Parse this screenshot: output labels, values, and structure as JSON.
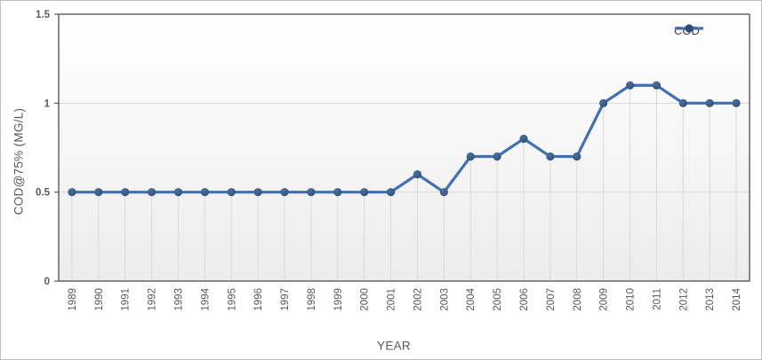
{
  "chart_data": {
    "type": "line",
    "title": "",
    "xlabel": "YEAR",
    "ylabel": "COD@75% (MG/L)",
    "categories": [
      "1989",
      "1990",
      "1991",
      "1992",
      "1993",
      "1994",
      "1995",
      "1996",
      "1997",
      "1998",
      "1999",
      "2000",
      "2001",
      "2002",
      "2003",
      "2004",
      "2005",
      "2006",
      "2007",
      "2008",
      "2009",
      "2010",
      "2011",
      "2012",
      "2013",
      "2014"
    ],
    "series": [
      {
        "name": "COD",
        "values": [
          0.5,
          0.5,
          0.5,
          0.5,
          0.5,
          0.5,
          0.5,
          0.5,
          0.5,
          0.5,
          0.5,
          0.5,
          0.5,
          0.6,
          0.5,
          0.7,
          0.7,
          0.8,
          0.7,
          0.7,
          1.0,
          1.1,
          1.1,
          1.0,
          1.0,
          1.0
        ]
      }
    ],
    "ylim": [
      0,
      1.5
    ],
    "yticks": [
      "0",
      "0.5",
      "1",
      "1.5"
    ],
    "ytick_values": [
      0,
      0.5,
      1,
      1.5
    ],
    "grid": {
      "horizontal_major": true,
      "vertical_major": false,
      "drop_lines": true
    },
    "legend": {
      "position": "top-right-inside",
      "entries": [
        "COD"
      ]
    },
    "marker_shape": "circle"
  },
  "colors": {
    "series_line": "#4070B2",
    "series_marker": "#2E4D6F",
    "series_marker_highlight": "#4A70A1",
    "gridline": "#D9D9D9",
    "drop_line": "#D9D9D9",
    "plot_border": "#3F3F3F",
    "plot_bg_top": "#FFFFFF",
    "plot_bg_mid": "#F7F7F7",
    "plot_bg_bottom": "#ECECEC",
    "tick_label": "#595959",
    "axis_title": "#595959",
    "legend_text": "#404040",
    "chart_border": "#BFBFBF",
    "chart_bg": "#FFFFFF"
  }
}
